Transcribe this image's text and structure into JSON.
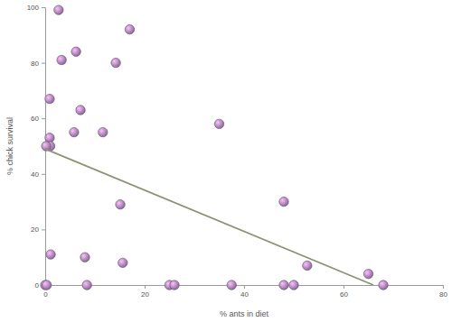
{
  "chart_data": {
    "type": "scatter",
    "x_label": "% ants in diet",
    "y_label": "% chick survival",
    "xlim": [
      0,
      80
    ],
    "xticks": [
      0,
      20,
      40,
      60,
      80
    ],
    "ylim": [
      0,
      100
    ],
    "yticks": [
      0,
      20,
      40,
      60,
      80,
      100
    ],
    "grid": false,
    "series": [
      {
        "type": "scatter",
        "marker": "circle",
        "color": "#a47db3",
        "x": [
          2.7,
          17,
          3.3,
          6.2,
          14.2,
          0.9,
          7.1,
          35,
          5.8,
          11.6,
          0.9,
          1.0,
          0.2,
          15.1,
          48,
          1.1,
          8.0,
          15.6,
          52.7,
          65,
          0,
          0.3,
          8.4,
          25,
          26,
          37.5,
          48,
          50,
          68
        ],
        "values": [
          99,
          92,
          81,
          84,
          80,
          67,
          63,
          58,
          55,
          55,
          53,
          50,
          50,
          29,
          30,
          11,
          10,
          8,
          7,
          4,
          0,
          0,
          0,
          0,
          0,
          0,
          0,
          0,
          0
        ]
      },
      {
        "type": "line",
        "line_style": "solid",
        "color": "#8c9474",
        "x": [
          0,
          66
        ],
        "values": [
          49,
          0
        ]
      }
    ]
  }
}
